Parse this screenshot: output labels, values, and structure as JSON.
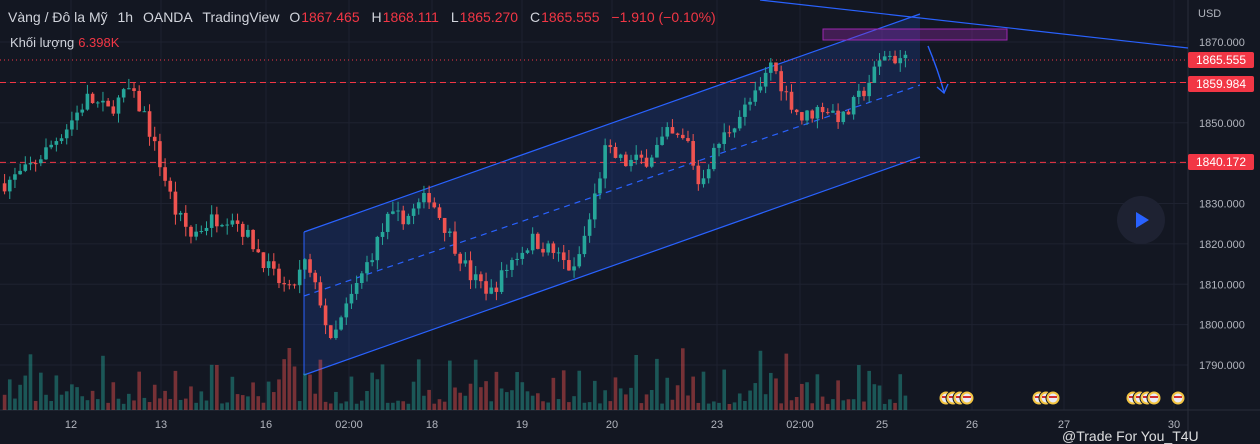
{
  "header": {
    "symbol": "Vàng / Đô la Mỹ",
    "interval": "1h",
    "broker": "OANDA",
    "platform": "TradingView",
    "ohlc": [
      {
        "key": "O",
        "value": "1867.465"
      },
      {
        "key": "H",
        "value": "1868.111"
      },
      {
        "key": "L",
        "value": "1865.270"
      },
      {
        "key": "C",
        "value": "1865.555"
      }
    ],
    "change": "−1.910 (−0.10%)",
    "volume_label": "Khối lượng",
    "volume_value": "6.398K"
  },
  "axis_unit": "USD",
  "price_tags": [
    {
      "value": "1865.555",
      "color": "#f23645"
    },
    {
      "value": "1859.984",
      "color": "#f23645"
    },
    {
      "value": "1840.172",
      "color": "#f23645"
    }
  ],
  "watermark": "@Trade For You_T4U",
  "colors": {
    "up": "#26a69a",
    "down": "#ef5350",
    "channel": "#2962ff",
    "level": "#f23645",
    "zone": "#9c27b0"
  },
  "chart_data": {
    "type": "candlestick",
    "ylim": [
      1785,
      1875
    ],
    "y_ticks": [
      1790,
      1800,
      1810,
      1820,
      1830,
      1840,
      1850,
      1860,
      1870
    ],
    "y_tick_labels": [
      "1790.000",
      "1800.000",
      "1810.000",
      "1820.000",
      "1830.000",
      "1840.000",
      "1850.000",
      "1860.000",
      "1870.000"
    ],
    "x_tick_labels": [
      "12",
      "13",
      "16",
      "02:00",
      "18",
      "19",
      "20",
      "23",
      "02:00",
      "25",
      "26",
      "27",
      "30"
    ],
    "last_price": 1865.555,
    "horizontal_levels": [
      1859.984,
      1840.172
    ],
    "price_path": [
      [
        0,
        1835
      ],
      [
        4,
        1838
      ],
      [
        8,
        1843
      ],
      [
        12,
        1849
      ],
      [
        16,
        1856
      ],
      [
        20,
        1853
      ],
      [
        24,
        1858
      ],
      [
        27,
        1852
      ],
      [
        30,
        1840
      ],
      [
        33,
        1828
      ],
      [
        36,
        1822
      ],
      [
        40,
        1826
      ],
      [
        44,
        1827
      ],
      [
        48,
        1820
      ],
      [
        52,
        1812
      ],
      [
        55,
        1808
      ],
      [
        58,
        1815
      ],
      [
        61,
        1806
      ],
      [
        63,
        1795
      ],
      [
        66,
        1804
      ],
      [
        70,
        1815
      ],
      [
        74,
        1826
      ],
      [
        78,
        1827
      ],
      [
        82,
        1832
      ],
      [
        86,
        1822
      ],
      [
        90,
        1812
      ],
      [
        94,
        1808
      ],
      [
        98,
        1816
      ],
      [
        102,
        1821
      ],
      [
        106,
        1818
      ],
      [
        110,
        1813
      ],
      [
        113,
        1826
      ],
      [
        116,
        1843
      ],
      [
        120,
        1840
      ],
      [
        124,
        1841
      ],
      [
        128,
        1847
      ],
      [
        132,
        1845
      ],
      [
        134,
        1835
      ],
      [
        138,
        1845
      ],
      [
        142,
        1852
      ],
      [
        146,
        1858
      ],
      [
        148,
        1865
      ],
      [
        151,
        1857
      ],
      [
        154,
        1851
      ],
      [
        158,
        1854
      ],
      [
        162,
        1851
      ],
      [
        166,
        1858
      ],
      [
        170,
        1867
      ],
      [
        172,
        1866
      ],
      [
        174,
        1865.5
      ]
    ]
  }
}
